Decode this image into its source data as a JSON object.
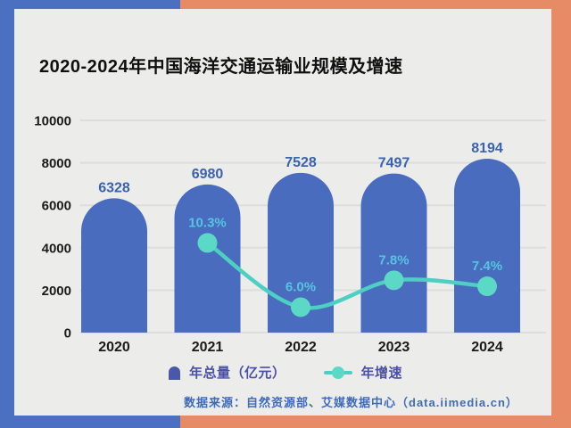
{
  "title": "2020-2024年中国海洋交通运输业规模及增速",
  "legend": {
    "bar_label": "年总量（亿元）",
    "line_label": "年增速"
  },
  "source": "数据来源：自然资源部、艾媒数据中心（data.iimedia.cn）",
  "chart_data": {
    "type": "bar",
    "subtype": "bar+line combo",
    "title": "2020-2024年中国海洋交通运输业规模及增速",
    "categories": [
      "2020",
      "2021",
      "2022",
      "2023",
      "2024"
    ],
    "series": [
      {
        "name": "年总量（亿元）",
        "type": "bar",
        "values": [
          6328,
          6980,
          7528,
          7497,
          8194
        ]
      },
      {
        "name": "年增速",
        "type": "line",
        "unit": "%",
        "values": [
          null,
          10.3,
          6.0,
          7.8,
          7.4
        ]
      }
    ],
    "bar_value_labels": [
      "6328",
      "6980",
      "7528",
      "7497",
      "8194"
    ],
    "pct_labels": [
      null,
      "10.3%",
      "6.0%",
      "7.8%",
      "7.4%"
    ],
    "y_axis": {
      "min": 0,
      "max": 10000,
      "ticks": [
        0,
        2000,
        4000,
        6000,
        8000,
        10000
      ]
    },
    "secondary_axis": {
      "min": 4.3,
      "max": 18.5,
      "visible": false
    },
    "grid": true,
    "legend_position": "bottom"
  },
  "colors": {
    "frame_blue": "#4B70C2",
    "frame_orange": "#E78B67",
    "card": "#ECECEB",
    "gridline": "#DDDDDC",
    "bar": "#4A6CBE",
    "bar_value_label": "#3A62AE",
    "tick_label": "#1A1A1A",
    "line": "#4DCFC3",
    "dot": "#5CD8C6",
    "pct_label": "#56C4E0",
    "legend_bar_swatch": "#4A58AC",
    "legend_text": "#4B50A7",
    "source_text": "#3E6CB8"
  }
}
